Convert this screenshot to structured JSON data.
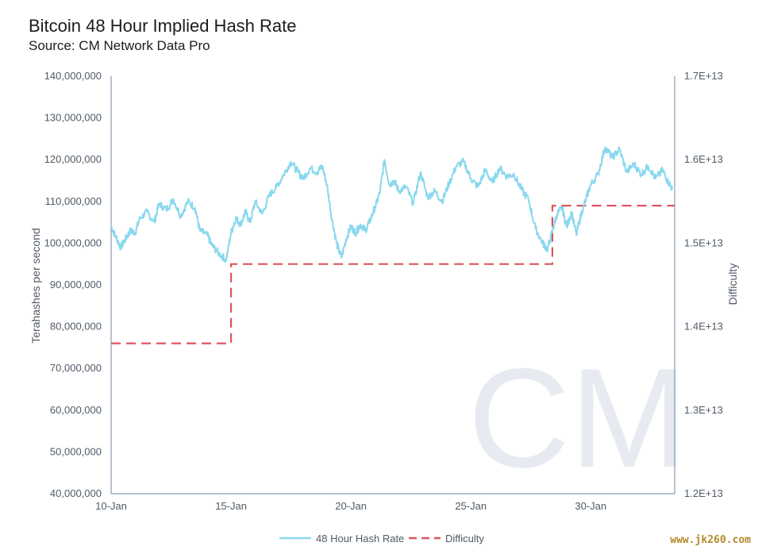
{
  "title": "Bitcoin 48 Hour Implied Hash Rate",
  "subtitle": "Source: CM Network Data Pro",
  "watermark": "www.jk260.com",
  "logo_text": "CM",
  "colors": {
    "hash": "#88d8ee",
    "difficulty": "#d9575e",
    "axis": "#8a9db0",
    "tick_text": "#505a66"
  },
  "chart_data": {
    "type": "line",
    "xlabel": "",
    "ylabel": "Terahashes per second",
    "y2label": "Difficulty",
    "x_ticks": [
      "10-Jan",
      "15-Jan",
      "20-Jan",
      "25-Jan",
      "30-Jan"
    ],
    "x_tick_days": [
      10,
      15,
      20,
      25,
      30
    ],
    "xlim_days": [
      10,
      33.5
    ],
    "y_ticks": [
      "140,000,000",
      "130,000,000",
      "120,000,000",
      "110,000,000",
      "100,000,000",
      "90,000,000",
      "80,000,000",
      "70,000,000",
      "60,000,000",
      "50,000,000",
      "40,000,000"
    ],
    "ylim": [
      40000000,
      140000000
    ],
    "y2_ticks": [
      "1.7E+13",
      "1.6E+13",
      "1.5E+13",
      "1.4E+13",
      "1.3E+13",
      "1.2E+13"
    ],
    "y2lim": [
      12000000000000.0,
      17000000000000.0
    ],
    "legend_position": "bottom-center",
    "series": [
      {
        "name": "48 Hour Hash Rate",
        "style": "solid",
        "axis": "left",
        "x": [
          10.0,
          10.2,
          10.4,
          10.6,
          10.8,
          11.0,
          11.2,
          11.5,
          11.8,
          12.0,
          12.3,
          12.6,
          12.9,
          13.2,
          13.5,
          13.7,
          14.0,
          14.2,
          14.5,
          14.8,
          15.0,
          15.2,
          15.4,
          15.6,
          15.8,
          16.0,
          16.3,
          16.6,
          16.9,
          17.2,
          17.5,
          17.8,
          18.0,
          18.3,
          18.6,
          18.8,
          19.0,
          19.2,
          19.4,
          19.6,
          19.8,
          20.0,
          20.2,
          20.4,
          20.6,
          20.8,
          21.0,
          21.2,
          21.4,
          21.6,
          21.8,
          22.0,
          22.3,
          22.6,
          22.9,
          23.2,
          23.5,
          23.8,
          24.1,
          24.4,
          24.7,
          25.0,
          25.3,
          25.6,
          25.9,
          26.2,
          26.5,
          26.8,
          27.1,
          27.4,
          27.7,
          28.0,
          28.2,
          28.4,
          28.6,
          28.8,
          29.0,
          29.2,
          29.4,
          29.6,
          29.8,
          30.0,
          30.3,
          30.6,
          30.9,
          31.2,
          31.5,
          31.8,
          32.1,
          32.4,
          32.7,
          33.0,
          33.2,
          33.4
        ],
        "y": [
          104000000,
          101500000,
          99000000,
          101000000,
          103000000,
          102500000,
          106000000,
          107500000,
          105000000,
          109500000,
          108000000,
          110500000,
          106500000,
          110000000,
          108500000,
          103000000,
          102000000,
          99500000,
          97500000,
          96000000,
          102500000,
          106000000,
          104500000,
          107500000,
          105000000,
          110000000,
          107000000,
          111500000,
          113500000,
          116500000,
          119500000,
          117000000,
          115500000,
          118000000,
          117000000,
          118500000,
          114000000,
          106000000,
          100000000,
          96500000,
          101000000,
          104000000,
          102500000,
          104500000,
          103000000,
          105500000,
          108500000,
          112000000,
          120000000,
          114000000,
          115000000,
          112500000,
          113500000,
          109500000,
          117000000,
          111000000,
          112500000,
          110000000,
          114500000,
          118500000,
          119500000,
          115500000,
          113500000,
          117500000,
          114500000,
          118000000,
          116000000,
          116500000,
          113000000,
          110500000,
          103500000,
          100000000,
          98500000,
          103000000,
          107000000,
          108500000,
          104000000,
          107500000,
          102000000,
          107000000,
          110500000,
          114000000,
          116500000,
          123000000,
          120500000,
          122500000,
          117000000,
          119000000,
          116500000,
          118500000,
          115500000,
          117500000,
          115000000,
          113000000
        ],
        "noise_amplitude": 900000
      },
      {
        "name": "Difficulty",
        "style": "dashed",
        "axis": "right",
        "steps": [
          {
            "from": 10.0,
            "to": 15.0,
            "value": 13800000000000.0
          },
          {
            "from": 15.0,
            "to": 28.4,
            "value": 14750000000000.0
          },
          {
            "from": 28.4,
            "to": 33.5,
            "value": 15450000000000.0
          }
        ]
      }
    ]
  }
}
